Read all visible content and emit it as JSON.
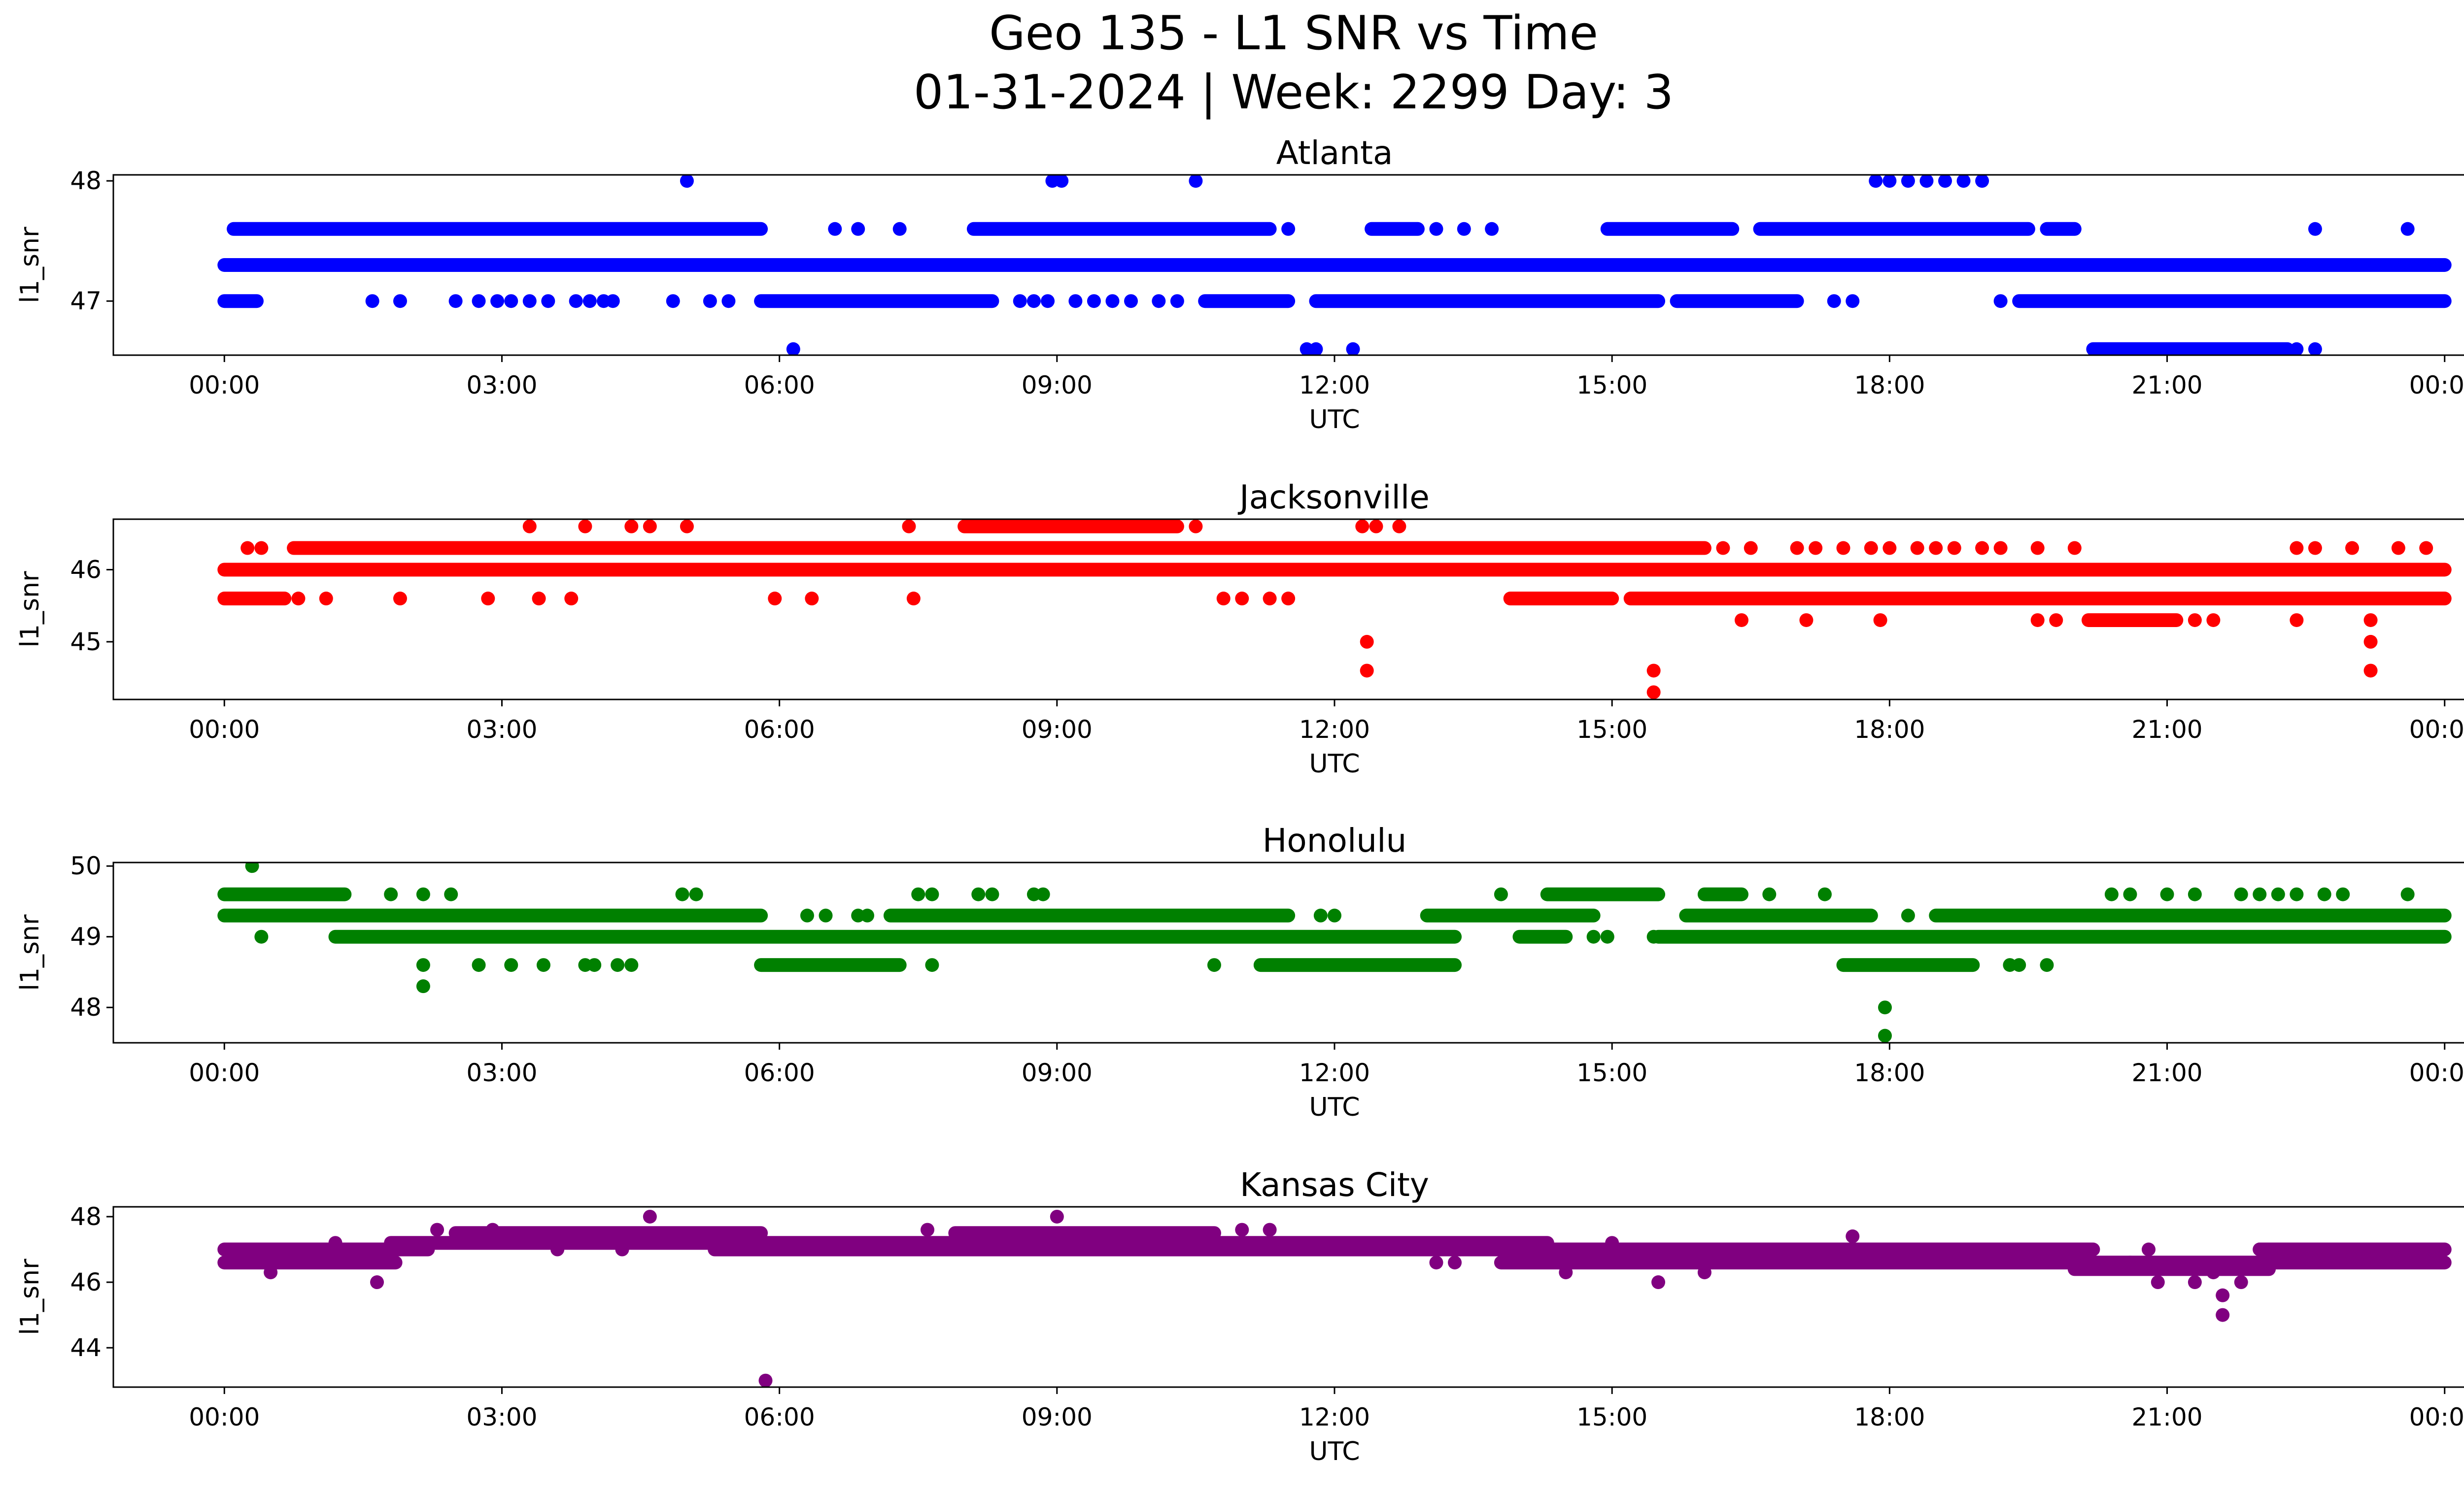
{
  "figure": {
    "title_line1": "Geo 135 - L1 SNR vs Time",
    "title_line2": "01-31-2024 | Week: 2299 Day: 3"
  },
  "chart_data": [
    {
      "type": "scatter",
      "title": "Atlanta",
      "xlabel": "UTC",
      "ylabel": "l1_snr",
      "color": "#0000ff",
      "x_unit": "hours UTC",
      "xlim": [
        -1.2,
        25.2
      ],
      "ylim": [
        46.55,
        48.05
      ],
      "x_ticks": [
        0,
        3,
        6,
        9,
        12,
        15,
        18,
        21,
        24
      ],
      "x_tick_labels": [
        "00:00",
        "03:00",
        "06:00",
        "09:00",
        "12:00",
        "15:00",
        "18:00",
        "21:00",
        "00:00"
      ],
      "y_ticks": [
        47,
        48
      ],
      "y_tick_labels": [
        "47",
        "48"
      ],
      "dense_bands": [
        {
          "y": 47.3,
          "x_ranges": [
            [
              0,
              24
            ]
          ]
        },
        {
          "y": 47.6,
          "x_ranges": [
            [
              0.1,
              5.8
            ],
            [
              8.1,
              11.3
            ],
            [
              12.4,
              12.9
            ],
            [
              14.95,
              16.3
            ],
            [
              16.6,
              19.5
            ],
            [
              19.7,
              20.0
            ]
          ]
        },
        {
          "y": 47.0,
          "x_ranges": [
            [
              0,
              0.35
            ],
            [
              5.8,
              8.3
            ],
            [
              10.6,
              11.5
            ],
            [
              11.8,
              15.5
            ],
            [
              15.7,
              17.0
            ],
            [
              19.4,
              24
            ]
          ]
        },
        {
          "y": 46.6,
          "x_ranges": [
            [
              20.2,
              22.3
            ]
          ]
        }
      ],
      "points": [
        {
          "x": 5.0,
          "y": 48
        },
        {
          "x": 8.95,
          "y": 48
        },
        {
          "x": 9.05,
          "y": 48
        },
        {
          "x": 10.5,
          "y": 48
        },
        {
          "x": 17.85,
          "y": 48
        },
        {
          "x": 18.0,
          "y": 48
        },
        {
          "x": 18.2,
          "y": 48
        },
        {
          "x": 18.4,
          "y": 48
        },
        {
          "x": 18.6,
          "y": 48
        },
        {
          "x": 18.8,
          "y": 48
        },
        {
          "x": 19.0,
          "y": 48
        },
        {
          "x": 6.6,
          "y": 47.6
        },
        {
          "x": 6.85,
          "y": 47.6
        },
        {
          "x": 7.3,
          "y": 47.6
        },
        {
          "x": 11.5,
          "y": 47.6
        },
        {
          "x": 13.1,
          "y": 47.6
        },
        {
          "x": 13.4,
          "y": 47.6
        },
        {
          "x": 13.7,
          "y": 47.6
        },
        {
          "x": 22.6,
          "y": 47.6
        },
        {
          "x": 23.6,
          "y": 47.6
        },
        {
          "x": 1.6,
          "y": 47
        },
        {
          "x": 1.9,
          "y": 47
        },
        {
          "x": 2.5,
          "y": 47
        },
        {
          "x": 2.75,
          "y": 47
        },
        {
          "x": 2.95,
          "y": 47
        },
        {
          "x": 3.1,
          "y": 47
        },
        {
          "x": 3.3,
          "y": 47
        },
        {
          "x": 3.5,
          "y": 47
        },
        {
          "x": 3.8,
          "y": 47
        },
        {
          "x": 3.95,
          "y": 47
        },
        {
          "x": 4.1,
          "y": 47
        },
        {
          "x": 4.2,
          "y": 47
        },
        {
          "x": 4.85,
          "y": 47
        },
        {
          "x": 5.25,
          "y": 47
        },
        {
          "x": 5.45,
          "y": 47
        },
        {
          "x": 8.6,
          "y": 47
        },
        {
          "x": 8.75,
          "y": 47
        },
        {
          "x": 8.9,
          "y": 47
        },
        {
          "x": 9.2,
          "y": 47
        },
        {
          "x": 9.4,
          "y": 47
        },
        {
          "x": 9.6,
          "y": 47
        },
        {
          "x": 9.8,
          "y": 47
        },
        {
          "x": 10.1,
          "y": 47
        },
        {
          "x": 10.3,
          "y": 47
        },
        {
          "x": 17.4,
          "y": 47
        },
        {
          "x": 17.6,
          "y": 47
        },
        {
          "x": 19.2,
          "y": 47
        },
        {
          "x": 6.15,
          "y": 46.6
        },
        {
          "x": 11.7,
          "y": 46.6
        },
        {
          "x": 11.8,
          "y": 46.6
        },
        {
          "x": 12.2,
          "y": 46.6
        },
        {
          "x": 22.4,
          "y": 46.6
        },
        {
          "x": 22.6,
          "y": 46.6
        }
      ]
    },
    {
      "type": "scatter",
      "title": "Jacksonville",
      "xlabel": "UTC",
      "ylabel": "l1_snr",
      "color": "#ff0000",
      "x_unit": "hours UTC",
      "xlim": [
        -1.2,
        25.2
      ],
      "ylim": [
        44.2,
        46.7
      ],
      "x_ticks": [
        0,
        3,
        6,
        9,
        12,
        15,
        18,
        21,
        24
      ],
      "x_tick_labels": [
        "00:00",
        "03:00",
        "06:00",
        "09:00",
        "12:00",
        "15:00",
        "18:00",
        "21:00",
        "00:00"
      ],
      "y_ticks": [
        45,
        46
      ],
      "y_tick_labels": [
        "45",
        "46"
      ],
      "dense_bands": [
        {
          "y": 46.0,
          "x_ranges": [
            [
              0,
              24
            ]
          ]
        },
        {
          "y": 46.3,
          "x_ranges": [
            [
              0.75,
              16.0
            ]
          ]
        },
        {
          "y": 45.6,
          "x_ranges": [
            [
              0,
              0.65
            ],
            [
              13.9,
              15.0
            ],
            [
              15.2,
              24
            ]
          ]
        },
        {
          "y": 46.6,
          "x_ranges": [
            [
              8.0,
              10.3
            ]
          ]
        },
        {
          "y": 45.3,
          "x_ranges": [
            [
              20.15,
              21.1
            ]
          ]
        }
      ],
      "points": [
        {
          "x": 0.25,
          "y": 46.3
        },
        {
          "x": 0.4,
          "y": 46.3
        },
        {
          "x": 16.2,
          "y": 46.3
        },
        {
          "x": 16.5,
          "y": 46.3
        },
        {
          "x": 17.0,
          "y": 46.3
        },
        {
          "x": 17.2,
          "y": 46.3
        },
        {
          "x": 17.5,
          "y": 46.3
        },
        {
          "x": 17.8,
          "y": 46.3
        },
        {
          "x": 18.0,
          "y": 46.3
        },
        {
          "x": 18.3,
          "y": 46.3
        },
        {
          "x": 18.5,
          "y": 46.3
        },
        {
          "x": 18.7,
          "y": 46.3
        },
        {
          "x": 19.0,
          "y": 46.3
        },
        {
          "x": 19.2,
          "y": 46.3
        },
        {
          "x": 19.6,
          "y": 46.3
        },
        {
          "x": 20.0,
          "y": 46.3
        },
        {
          "x": 22.4,
          "y": 46.3
        },
        {
          "x": 22.6,
          "y": 46.3
        },
        {
          "x": 23.0,
          "y": 46.3
        },
        {
          "x": 23.5,
          "y": 46.3
        },
        {
          "x": 23.8,
          "y": 46.3
        },
        {
          "x": 3.3,
          "y": 46.6
        },
        {
          "x": 3.9,
          "y": 46.6
        },
        {
          "x": 4.4,
          "y": 46.6
        },
        {
          "x": 4.6,
          "y": 46.6
        },
        {
          "x": 5.0,
          "y": 46.6
        },
        {
          "x": 7.4,
          "y": 46.6
        },
        {
          "x": 10.5,
          "y": 46.6
        },
        {
          "x": 12.3,
          "y": 46.6
        },
        {
          "x": 12.45,
          "y": 46.6
        },
        {
          "x": 12.7,
          "y": 46.6
        },
        {
          "x": 0.8,
          "y": 45.6
        },
        {
          "x": 1.1,
          "y": 45.6
        },
        {
          "x": 1.9,
          "y": 45.6
        },
        {
          "x": 2.85,
          "y": 45.6
        },
        {
          "x": 3.4,
          "y": 45.6
        },
        {
          "x": 3.75,
          "y": 45.6
        },
        {
          "x": 5.95,
          "y": 45.6
        },
        {
          "x": 6.35,
          "y": 45.6
        },
        {
          "x": 7.45,
          "y": 45.6
        },
        {
          "x": 10.8,
          "y": 45.6
        },
        {
          "x": 11.0,
          "y": 45.6
        },
        {
          "x": 11.3,
          "y": 45.6
        },
        {
          "x": 11.5,
          "y": 45.6
        },
        {
          "x": 16.4,
          "y": 45.3
        },
        {
          "x": 17.1,
          "y": 45.3
        },
        {
          "x": 17.9,
          "y": 45.3
        },
        {
          "x": 19.6,
          "y": 45.3
        },
        {
          "x": 19.8,
          "y": 45.3
        },
        {
          "x": 21.3,
          "y": 45.3
        },
        {
          "x": 21.5,
          "y": 45.3
        },
        {
          "x": 22.4,
          "y": 45.3
        },
        {
          "x": 23.2,
          "y": 45.3
        },
        {
          "x": 12.35,
          "y": 45.0
        },
        {
          "x": 12.35,
          "y": 44.6
        },
        {
          "x": 15.45,
          "y": 44.6
        },
        {
          "x": 15.45,
          "y": 44.3
        },
        {
          "x": 23.2,
          "y": 45.0
        },
        {
          "x": 23.2,
          "y": 44.6
        }
      ]
    },
    {
      "type": "scatter",
      "title": "Honolulu",
      "xlabel": "UTC",
      "ylabel": "l1_snr",
      "color": "#008000",
      "x_unit": "hours UTC",
      "xlim": [
        -1.2,
        25.2
      ],
      "ylim": [
        47.5,
        50.05
      ],
      "x_ticks": [
        0,
        3,
        6,
        9,
        12,
        15,
        18,
        21,
        24
      ],
      "x_tick_labels": [
        "00:00",
        "03:00",
        "06:00",
        "09:00",
        "12:00",
        "15:00",
        "18:00",
        "21:00",
        "00:00"
      ],
      "y_ticks": [
        48,
        49,
        50
      ],
      "y_tick_labels": [
        "48",
        "49",
        "50"
      ],
      "dense_bands": [
        {
          "y": 49.3,
          "x_ranges": [
            [
              0,
              5.8
            ],
            [
              7.2,
              11.5
            ],
            [
              13.0,
              14.8
            ],
            [
              15.8,
              17.8
            ],
            [
              18.5,
              24
            ]
          ]
        },
        {
          "y": 49.0,
          "x_ranges": [
            [
              1.2,
              13.3
            ],
            [
              14.0,
              14.5
            ],
            [
              15.5,
              24
            ]
          ]
        },
        {
          "y": 49.6,
          "x_ranges": [
            [
              0,
              1.3
            ],
            [
              14.3,
              15.5
            ],
            [
              16.0,
              16.4
            ]
          ]
        },
        {
          "y": 48.6,
          "x_ranges": [
            [
              5.8,
              7.3
            ],
            [
              11.2,
              13.3
            ],
            [
              17.5,
              18.9
            ]
          ]
        }
      ],
      "points": [
        {
          "x": 0.3,
          "y": 50.0
        },
        {
          "x": 0.4,
          "y": 49.0
        },
        {
          "x": 1.8,
          "y": 49.6
        },
        {
          "x": 2.15,
          "y": 49.6
        },
        {
          "x": 2.45,
          "y": 49.6
        },
        {
          "x": 4.95,
          "y": 49.6
        },
        {
          "x": 5.1,
          "y": 49.6
        },
        {
          "x": 7.5,
          "y": 49.6
        },
        {
          "x": 7.65,
          "y": 49.6
        },
        {
          "x": 8.15,
          "y": 49.6
        },
        {
          "x": 8.3,
          "y": 49.6
        },
        {
          "x": 8.75,
          "y": 49.6
        },
        {
          "x": 8.85,
          "y": 49.6
        },
        {
          "x": 13.8,
          "y": 49.6
        },
        {
          "x": 16.7,
          "y": 49.6
        },
        {
          "x": 17.3,
          "y": 49.6
        },
        {
          "x": 20.4,
          "y": 49.6
        },
        {
          "x": 20.6,
          "y": 49.6
        },
        {
          "x": 21.0,
          "y": 49.6
        },
        {
          "x": 21.3,
          "y": 49.6
        },
        {
          "x": 21.8,
          "y": 49.6
        },
        {
          "x": 22.0,
          "y": 49.6
        },
        {
          "x": 22.2,
          "y": 49.6
        },
        {
          "x": 22.4,
          "y": 49.6
        },
        {
          "x": 22.7,
          "y": 49.6
        },
        {
          "x": 22.9,
          "y": 49.6
        },
        {
          "x": 23.6,
          "y": 49.6
        },
        {
          "x": 6.3,
          "y": 49.3
        },
        {
          "x": 6.5,
          "y": 49.3
        },
        {
          "x": 6.85,
          "y": 49.3
        },
        {
          "x": 6.95,
          "y": 49.3
        },
        {
          "x": 11.85,
          "y": 49.3
        },
        {
          "x": 12.0,
          "y": 49.3
        },
        {
          "x": 18.2,
          "y": 49.3
        },
        {
          "x": 14.8,
          "y": 49.0
        },
        {
          "x": 14.95,
          "y": 49.0
        },
        {
          "x": 15.45,
          "y": 49.0
        },
        {
          "x": 2.15,
          "y": 48.6
        },
        {
          "x": 2.75,
          "y": 48.6
        },
        {
          "x": 3.1,
          "y": 48.6
        },
        {
          "x": 3.45,
          "y": 48.6
        },
        {
          "x": 3.9,
          "y": 48.6
        },
        {
          "x": 4.0,
          "y": 48.6
        },
        {
          "x": 4.25,
          "y": 48.6
        },
        {
          "x": 4.4,
          "y": 48.6
        },
        {
          "x": 7.65,
          "y": 48.6
        },
        {
          "x": 10.7,
          "y": 48.6
        },
        {
          "x": 19.3,
          "y": 48.6
        },
        {
          "x": 19.4,
          "y": 48.6
        },
        {
          "x": 19.7,
          "y": 48.6
        },
        {
          "x": 2.15,
          "y": 48.3
        },
        {
          "x": 17.95,
          "y": 48.0
        },
        {
          "x": 17.95,
          "y": 47.6
        }
      ]
    },
    {
      "type": "scatter",
      "title": "Kansas City",
      "xlabel": "UTC",
      "ylabel": "l1_snr",
      "color": "#800080",
      "x_unit": "hours UTC",
      "xlim": [
        -1.2,
        25.2
      ],
      "ylim": [
        42.8,
        48.3
      ],
      "x_ticks": [
        0,
        3,
        6,
        9,
        12,
        15,
        18,
        21,
        24
      ],
      "x_tick_labels": [
        "00:00",
        "03:00",
        "06:00",
        "09:00",
        "12:00",
        "15:00",
        "18:00",
        "21:00",
        "00:00"
      ],
      "y_ticks": [
        44,
        46,
        48
      ],
      "y_tick_labels": [
        "44",
        "46",
        "48"
      ],
      "dense_bands": [
        {
          "y": 46.6,
          "x_ranges": [
            [
              0,
              1.85
            ],
            [
              13.8,
              24
            ]
          ]
        },
        {
          "y": 47.0,
          "x_ranges": [
            [
              0,
              2.2
            ],
            [
              5.3,
              13.8
            ],
            [
              13.8,
              20.2
            ],
            [
              22.0,
              24
            ]
          ]
        },
        {
          "y": 47.2,
          "x_ranges": [
            [
              1.8,
              14.3
            ]
          ]
        },
        {
          "y": 47.5,
          "x_ranges": [
            [
              2.5,
              5.8
            ],
            [
              7.9,
              10.7
            ]
          ]
        },
        {
          "y": 46.8,
          "x_ranges": [
            [
              14.0,
              19.8
            ]
          ]
        },
        {
          "y": 46.4,
          "x_ranges": [
            [
              20.0,
              22.1
            ]
          ]
        }
      ],
      "points": [
        {
          "x": 0.5,
          "y": 46.3
        },
        {
          "x": 1.2,
          "y": 47.2
        },
        {
          "x": 1.65,
          "y": 46.0
        },
        {
          "x": 2.3,
          "y": 47.6
        },
        {
          "x": 2.9,
          "y": 47.6
        },
        {
          "x": 3.6,
          "y": 47.0
        },
        {
          "x": 4.3,
          "y": 47.0
        },
        {
          "x": 4.6,
          "y": 48.0
        },
        {
          "x": 5.85,
          "y": 43.0
        },
        {
          "x": 7.6,
          "y": 47.6
        },
        {
          "x": 9.0,
          "y": 48.0
        },
        {
          "x": 11.0,
          "y": 47.6
        },
        {
          "x": 11.3,
          "y": 47.6
        },
        {
          "x": 13.1,
          "y": 46.6
        },
        {
          "x": 13.3,
          "y": 46.6
        },
        {
          "x": 14.5,
          "y": 46.3
        },
        {
          "x": 15.5,
          "y": 46.0
        },
        {
          "x": 16.0,
          "y": 46.3
        },
        {
          "x": 15.0,
          "y": 47.2
        },
        {
          "x": 17.6,
          "y": 47.4
        },
        {
          "x": 20.6,
          "y": 46.6
        },
        {
          "x": 20.8,
          "y": 47.0
        },
        {
          "x": 20.9,
          "y": 46.0
        },
        {
          "x": 21.3,
          "y": 46.0
        },
        {
          "x": 21.5,
          "y": 46.3
        },
        {
          "x": 21.6,
          "y": 45.6
        },
        {
          "x": 21.6,
          "y": 45.0
        },
        {
          "x": 21.8,
          "y": 46.0
        },
        {
          "x": 22.0,
          "y": 47.0
        }
      ]
    }
  ]
}
